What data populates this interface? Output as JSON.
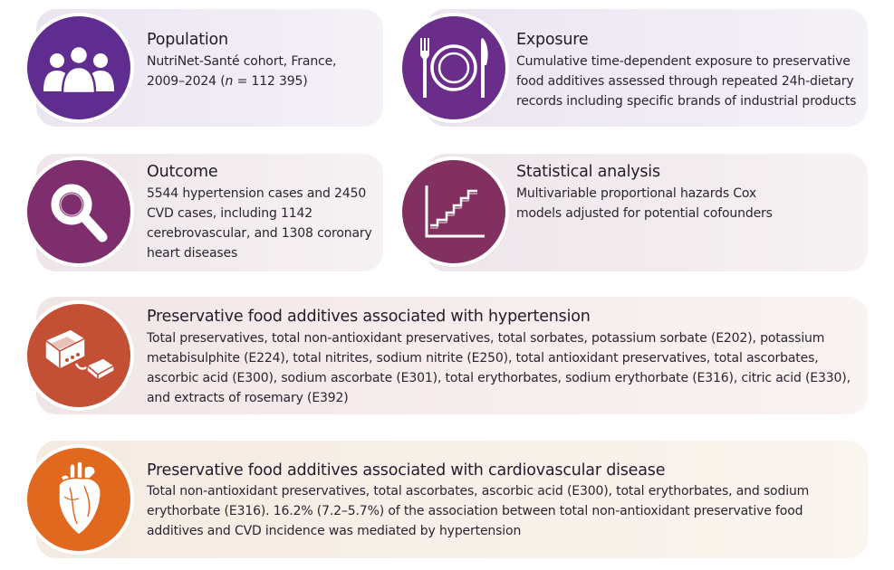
{
  "colors": {
    "population": "#5f2d8f",
    "exposure": "#6a2d8a",
    "outcome": "#7e2d6d",
    "statistical": "#82305f",
    "hypertension": "#c34f35",
    "cardio": "#e0681f"
  },
  "panels": {
    "population": {
      "icon": "people-icon",
      "title": "Population",
      "text_a": "NutriNet-Santé cohort, France,",
      "text_b": "2009–2024 (",
      "text_n": "n",
      "text_c": " = 112 395)"
    },
    "exposure": {
      "icon": "plate-cutlery-icon",
      "title": "Exposure",
      "text": "Cumulative time-dependent exposure to preservative food additives assessed through repeated 24h-dietary records including specific brands of industrial products"
    },
    "outcome": {
      "icon": "magnifier-icon",
      "title": "Outcome",
      "text": "5544 hypertension cases and 2450 CVD cases, including 1142 cerebrovascular, and 1308 coronary heart diseases"
    },
    "statistical": {
      "icon": "step-chart-icon",
      "title": "Statistical analysis",
      "text": "Multivariable proportional hazards Cox models adjusted for potential cofounders"
    },
    "hypertension": {
      "icon": "blood-pressure-monitor-icon",
      "title": "Preservative food additives associated with hypertension",
      "text": "Total preservatives, total non-antioxidant preservatives, total sorbates, potassium sorbate (E202), potassium metabisulphite (E224), total nitrites, sodium nitrite (E250), total antioxidant preservatives, total ascorbates, ascorbic acid (E300), sodium ascorbate (E301), total erythorbates, sodium erythorbate (E316), citric acid (E330), and extracts of rosemary (E392)"
    },
    "cardio": {
      "icon": "heart-icon",
      "title": "Preservative food additives associated with cardiovascular disease",
      "text": "Total non-antioxidant preservatives, total ascorbates, ascorbic acid (E300), total erythorbates, and sodium erythorbate (E316). 16.2% (7.2–5.7%) of the association between total non-antioxidant preservative food additives and CVD incidence was mediated by hypertension"
    }
  }
}
